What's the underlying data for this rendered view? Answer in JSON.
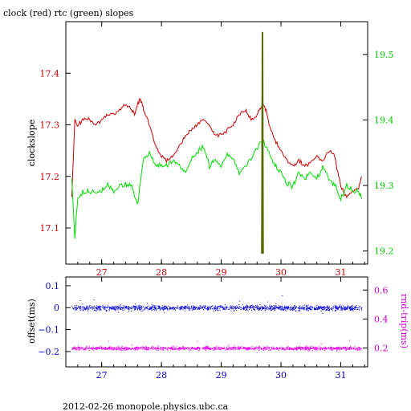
{
  "header": {
    "title": "clock (red) rtc (green) slopes",
    "footer": "2012-02-26  monopole.physics.ubc.ca"
  },
  "colors": {
    "red": "#cc0000",
    "green": "#00dd00",
    "olive": "#556b00",
    "blue": "#0000dd",
    "magenta": "#ee00ee",
    "axis_left_top": "#cc0000",
    "axis_right_top": "#00cc00",
    "axis_left_bottom": "#0000cc",
    "axis_right_bottom": "#cc00cc"
  },
  "chart_data": [
    {
      "type": "line",
      "title": "clock (red) rtc (green) slopes",
      "xlabel": "",
      "ylabel": "clockslope",
      "xlim": [
        26.4,
        31.45
      ],
      "ylim": [
        17.03,
        17.5
      ],
      "x_ticks": [
        27,
        28,
        29,
        30,
        31
      ],
      "y_ticks": [
        17.1,
        17.2,
        17.3,
        17.4
      ],
      "y2_label": "",
      "y2lim": [
        19.18,
        19.55
      ],
      "y2_ticks": [
        19.2,
        19.3,
        19.4,
        19.5
      ],
      "series": [
        {
          "axis": "left",
          "color": "red",
          "points": [
            [
              26.5,
              17.16
            ],
            [
              26.55,
              17.31
            ],
            [
              26.6,
              17.3
            ],
            [
              26.7,
              17.31
            ],
            [
              26.8,
              17.31
            ],
            [
              26.9,
              17.3
            ],
            [
              27.0,
              17.31
            ],
            [
              27.1,
              17.32
            ],
            [
              27.2,
              17.32
            ],
            [
              27.3,
              17.33
            ],
            [
              27.4,
              17.34
            ],
            [
              27.5,
              17.33
            ],
            [
              27.55,
              17.32
            ],
            [
              27.6,
              17.34
            ],
            [
              27.65,
              17.35
            ],
            [
              27.7,
              17.33
            ],
            [
              27.8,
              17.3
            ],
            [
              27.9,
              17.26
            ],
            [
              28.0,
              17.24
            ],
            [
              28.1,
              17.23
            ],
            [
              28.2,
              17.24
            ],
            [
              28.3,
              17.26
            ],
            [
              28.4,
              17.28
            ],
            [
              28.5,
              17.29
            ],
            [
              28.6,
              17.3
            ],
            [
              28.7,
              17.31
            ],
            [
              28.8,
              17.3
            ],
            [
              28.9,
              17.28
            ],
            [
              29.0,
              17.28
            ],
            [
              29.1,
              17.29
            ],
            [
              29.2,
              17.3
            ],
            [
              29.3,
              17.32
            ],
            [
              29.4,
              17.33
            ],
            [
              29.5,
              17.31
            ],
            [
              29.6,
              17.32
            ],
            [
              29.65,
              17.33
            ],
            [
              29.7,
              17.34
            ],
            [
              29.75,
              17.33
            ],
            [
              29.8,
              17.3
            ],
            [
              29.9,
              17.27
            ],
            [
              30.0,
              17.25
            ],
            [
              30.1,
              17.23
            ],
            [
              30.2,
              17.22
            ],
            [
              30.3,
              17.23
            ],
            [
              30.4,
              17.22
            ],
            [
              30.5,
              17.23
            ],
            [
              30.6,
              17.24
            ],
            [
              30.7,
              17.23
            ],
            [
              30.8,
              17.25
            ],
            [
              30.9,
              17.24
            ],
            [
              31.0,
              17.18
            ],
            [
              31.1,
              17.16
            ],
            [
              31.2,
              17.17
            ],
            [
              31.3,
              17.18
            ],
            [
              31.35,
              17.2
            ]
          ]
        },
        {
          "axis": "right",
          "color": "green",
          "points": [
            [
              26.5,
              19.31
            ],
            [
              26.55,
              19.22
            ],
            [
              26.6,
              19.28
            ],
            [
              26.7,
              19.29
            ],
            [
              26.8,
              19.29
            ],
            [
              26.9,
              19.29
            ],
            [
              27.0,
              19.29
            ],
            [
              27.1,
              19.3
            ],
            [
              27.2,
              19.29
            ],
            [
              27.3,
              19.3
            ],
            [
              27.4,
              19.3
            ],
            [
              27.5,
              19.3
            ],
            [
              27.6,
              19.27
            ],
            [
              27.7,
              19.34
            ],
            [
              27.8,
              19.35
            ],
            [
              27.9,
              19.33
            ],
            [
              28.0,
              19.33
            ],
            [
              28.1,
              19.33
            ],
            [
              28.2,
              19.34
            ],
            [
              28.3,
              19.33
            ],
            [
              28.4,
              19.32
            ],
            [
              28.5,
              19.34
            ],
            [
              28.6,
              19.35
            ],
            [
              28.7,
              19.36
            ],
            [
              28.8,
              19.33
            ],
            [
              28.9,
              19.34
            ],
            [
              29.0,
              19.33
            ],
            [
              29.1,
              19.35
            ],
            [
              29.2,
              19.34
            ],
            [
              29.3,
              19.32
            ],
            [
              29.4,
              19.33
            ],
            [
              29.5,
              19.34
            ],
            [
              29.6,
              19.36
            ],
            [
              29.7,
              19.37
            ],
            [
              29.8,
              19.35
            ],
            [
              29.9,
              19.33
            ],
            [
              30.0,
              19.32
            ],
            [
              30.1,
              19.3
            ],
            [
              30.2,
              19.3
            ],
            [
              30.3,
              19.32
            ],
            [
              30.4,
              19.31
            ],
            [
              30.5,
              19.32
            ],
            [
              30.6,
              19.31
            ],
            [
              30.7,
              19.33
            ],
            [
              30.8,
              19.31
            ],
            [
              30.9,
              19.3
            ],
            [
              31.0,
              19.28
            ],
            [
              31.1,
              19.3
            ],
            [
              31.2,
              19.29
            ],
            [
              31.3,
              19.29
            ],
            [
              31.35,
              19.28
            ]
          ]
        },
        {
          "axis": "left",
          "color": "olive",
          "points": [
            [
              29.68,
              17.05
            ],
            [
              29.69,
              17.48
            ],
            [
              29.7,
              17.05
            ]
          ]
        }
      ]
    },
    {
      "type": "scatter",
      "xlabel": "",
      "ylabel": "offset(ms)",
      "xlim": [
        26.4,
        31.45
      ],
      "ylim": [
        -0.27,
        0.14
      ],
      "x_ticks": [
        27,
        28,
        29,
        30,
        31
      ],
      "y_ticks": [
        -0.2,
        -0.1,
        0,
        0.1
      ],
      "y2_label": "rnd-trip(ms)",
      "y2lim": [
        0.07,
        0.69
      ],
      "y2_ticks": [
        0.2,
        0.4,
        0.6
      ],
      "series": [
        {
          "axis": "left",
          "color": "blue",
          "x": [
            26.5,
            31.35
          ],
          "mean": 0.0,
          "spread": 0.012
        },
        {
          "axis": "right",
          "color": "magenta",
          "x": [
            26.5,
            31.35
          ],
          "mean": 0.2,
          "spread": 0.012
        }
      ]
    }
  ]
}
